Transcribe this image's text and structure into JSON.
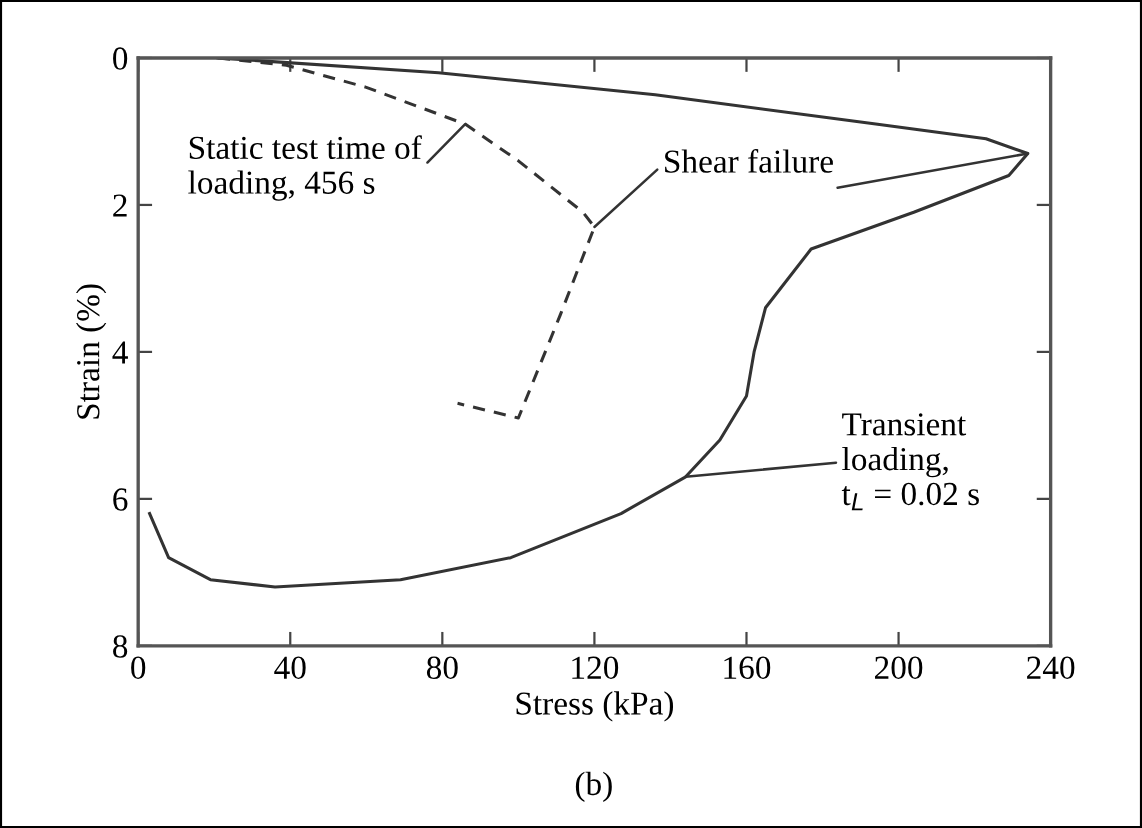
{
  "chart_data": {
    "type": "line",
    "xlabel": "Stress (kPa)",
    "ylabel": "Strain (%)",
    "xlim": [
      0,
      240
    ],
    "xticks": [
      0,
      40,
      80,
      120,
      160,
      200,
      240
    ],
    "ylim": [
      8,
      0
    ],
    "yticks": [
      0,
      2,
      4,
      6,
      8
    ],
    "grid": false,
    "series": [
      {
        "color": "#333333",
        "line_style": "dashed",
        "x": [
          21,
          39,
          60,
          86,
          100,
          117,
          120,
          111,
          100,
          84
        ],
        "values": [
          0,
          0.1,
          0.4,
          0.9,
          1.4,
          2.1,
          2.3,
          3.5,
          4.9,
          4.7
        ]
      },
      {
        "color": "#333333",
        "line_style": "solid",
        "x": [
          21,
          79,
          136,
          194,
          223,
          234,
          229,
          204,
          177,
          165,
          162,
          160,
          153,
          144,
          127,
          98,
          69,
          36,
          19,
          8,
          3
        ],
        "values": [
          0,
          0.2,
          0.5,
          0.9,
          1.1,
          1.3,
          1.6,
          2.1,
          2.6,
          3.4,
          4.0,
          4.6,
          5.2,
          5.7,
          6.2,
          6.8,
          7.1,
          7.2,
          7.1,
          6.8,
          6.2
        ]
      }
    ],
    "annotations": [
      {
        "text": "Static test time of\nloading, 456 s",
        "x": 86,
        "y": 0.9
      },
      {
        "text": "Shear failure",
        "x": 120,
        "y": 2.3
      },
      {
        "text": "Transient\nloading,\nt$_{L}$ = 0.02 s",
        "x": 144,
        "y": 5.7
      },
      "(b)"
    ]
  }
}
